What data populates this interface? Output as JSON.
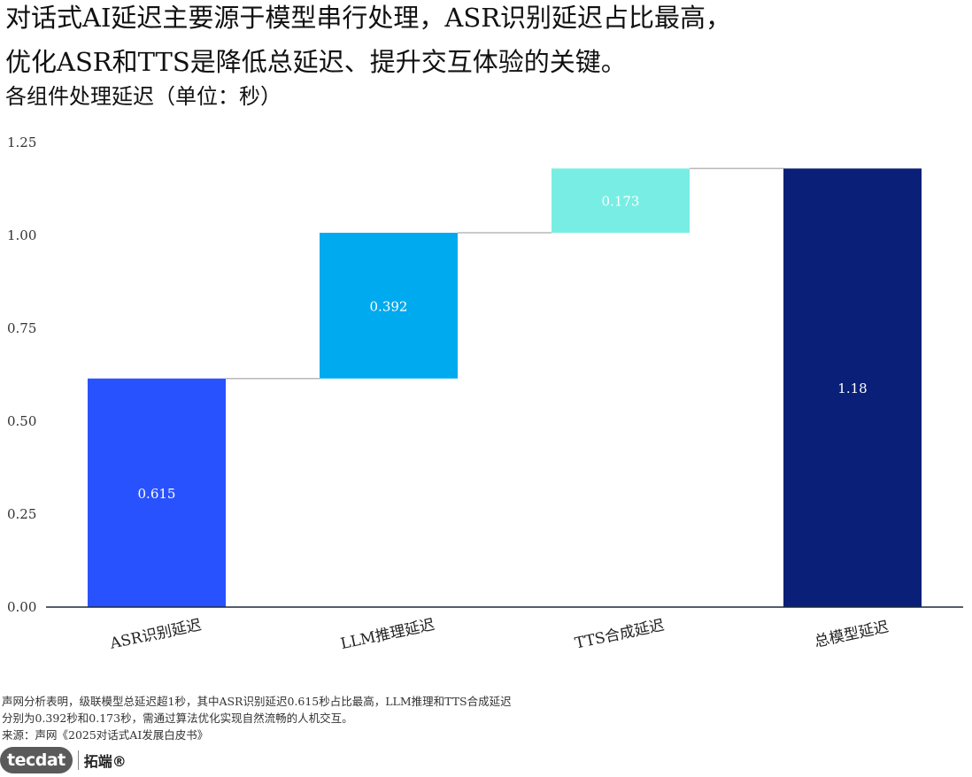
{
  "title_lines": [
    "对话式AI延迟主要源于模型串行处理，ASR识别延迟占比最高，",
    "优化ASR和TTS是降低总延迟、提升交互体验的关键。"
  ],
  "subtitle": "各组件处理延迟（单位：秒）",
  "chart_data": {
    "type": "bar",
    "subtype": "waterfall",
    "categories": [
      "ASR识别延迟",
      "LLM推理延迟",
      "TTS合成延迟",
      "总模型延迟"
    ],
    "steps": [
      {
        "category": "ASR识别延迟",
        "value": 0.615,
        "label": "0.615",
        "kind": "increment",
        "color": "#2952ff"
      },
      {
        "category": "LLM推理延迟",
        "value": 0.392,
        "label": "0.392",
        "kind": "increment",
        "color": "#00aaee"
      },
      {
        "category": "TTS合成延迟",
        "value": 0.173,
        "label": "0.173",
        "kind": "increment",
        "color": "#78ede3"
      },
      {
        "category": "总模型延迟",
        "value": 1.18,
        "label": "1.18",
        "kind": "total",
        "color": "#0a1f78"
      }
    ],
    "y_ticks": [
      "0.00",
      "0.25",
      "0.50",
      "0.75",
      "1.00",
      "1.25"
    ],
    "ylim": [
      0,
      1.25
    ],
    "grid": false,
    "connectors": true
  },
  "footnotes": [
    "声网分析表明，级联模型总延迟超1秒，其中ASR识别延迟0.615秒占比最高，LLM推理和TTS合成延迟",
    "分别为0.392秒和0.173秒，需通过算法优化实现自然流畅的人机交互。"
  ],
  "source": "来源：声网《2025对话式AI发展白皮书》",
  "logo": {
    "brand": "tecdat",
    "brand_cn": "拓端®"
  }
}
